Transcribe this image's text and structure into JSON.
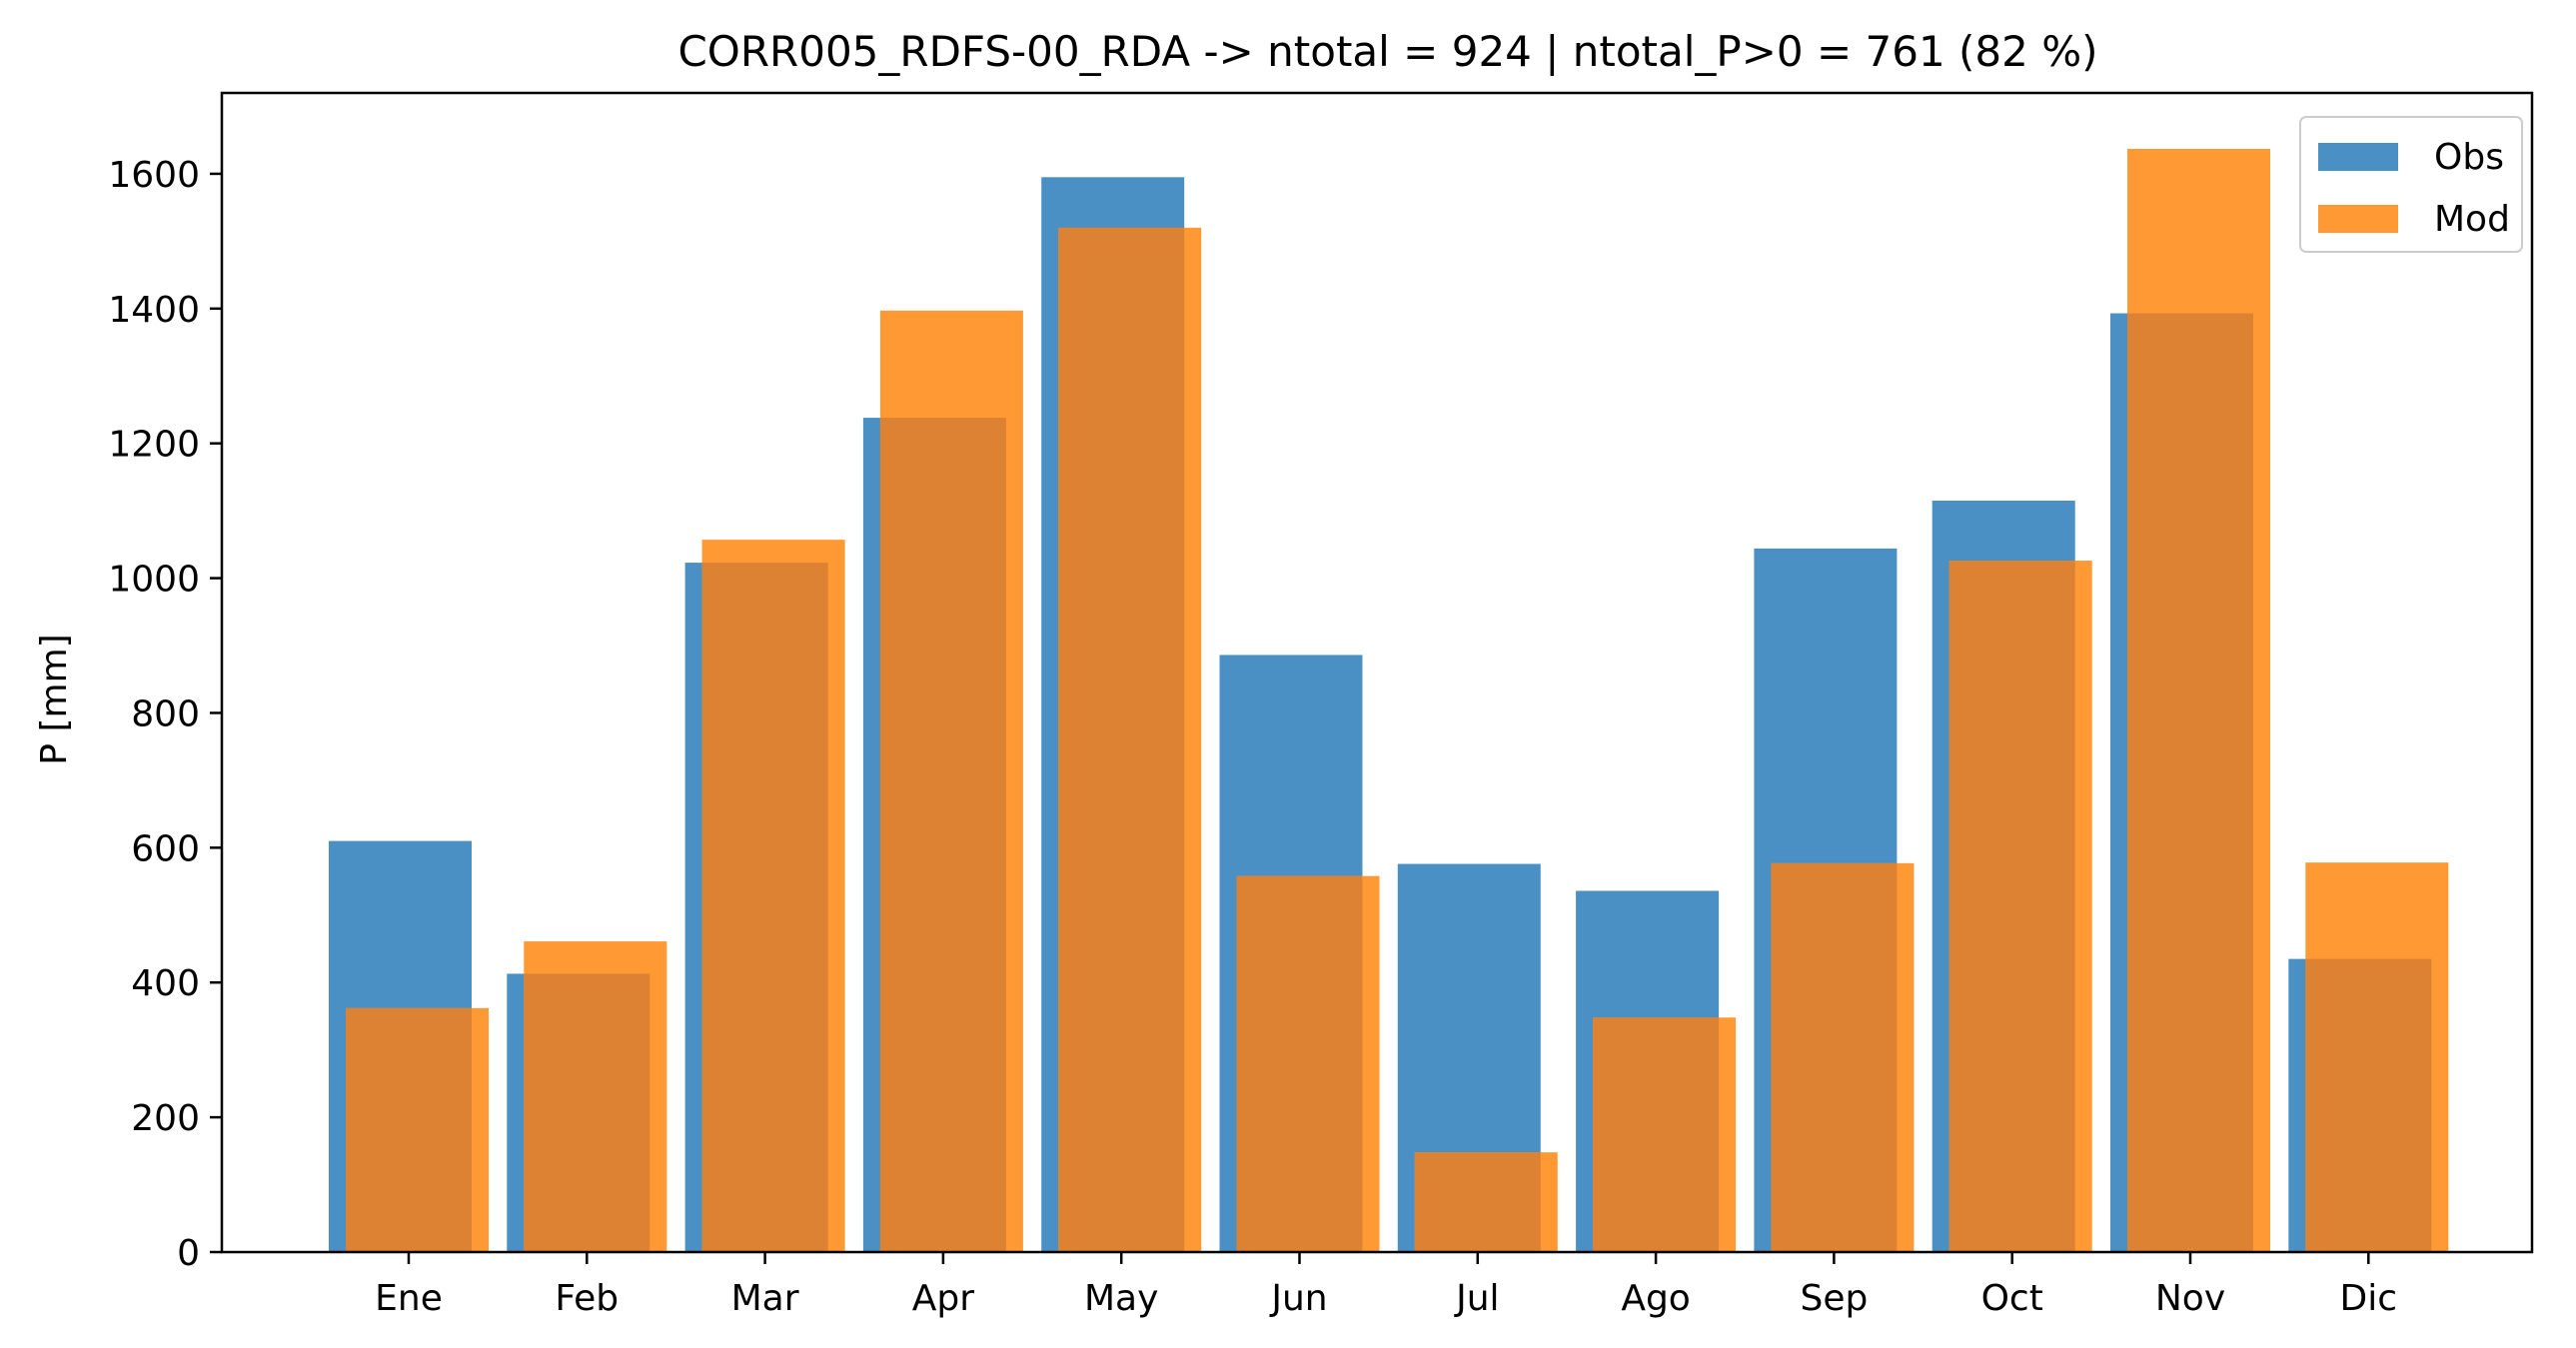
{
  "chart_data": {
    "type": "bar",
    "title": "CORR005_RDFS-00_RDA -> ntotal = 924 | ntotal_P>0 = 761 (82 %)",
    "xlabel": "",
    "ylabel": "P [mm]",
    "ylim": [
      0,
      1720
    ],
    "yticks": [
      0,
      200,
      400,
      600,
      800,
      1000,
      1200,
      1400,
      1600
    ],
    "categories": [
      "Ene",
      "Feb",
      "Mar",
      "Apr",
      "May",
      "Jun",
      "Jul",
      "Ago",
      "Sep",
      "Oct",
      "Nov",
      "Dic"
    ],
    "series": [
      {
        "name": "Obs",
        "color": "#4a90c4",
        "values": [
          610,
          413,
          1023,
          1238,
          1595,
          886,
          576,
          536,
          1044,
          1115,
          1393,
          435
        ]
      },
      {
        "name": "Mod",
        "color": "#ff9933",
        "values": [
          362,
          461,
          1057,
          1397,
          1520,
          558,
          148,
          348,
          577,
          1026,
          1637,
          578
        ]
      }
    ],
    "overlap_color": "#dd8232",
    "legend": {
      "placement": "top-right"
    },
    "grid": false
  }
}
